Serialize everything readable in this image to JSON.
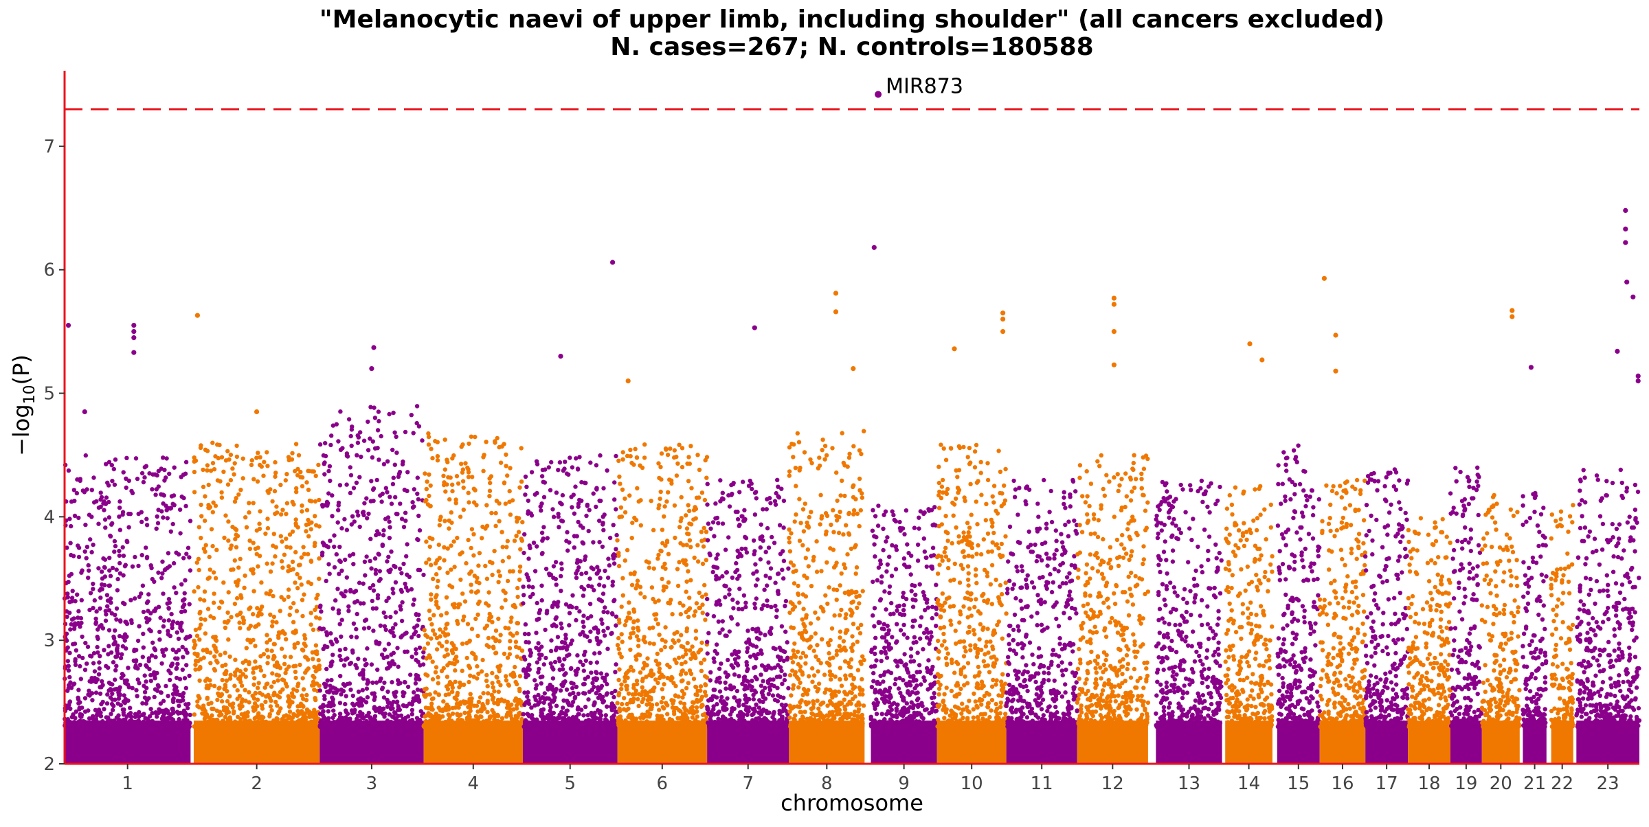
{
  "chart_data": {
    "type": "scatter",
    "title_line1": "\"Melanocytic naevi of upper limb, including shoulder\" (all cancers excluded)",
    "title_line2": "N. cases=267; N. controls=180588",
    "xlabel": "chromosome",
    "ylabel": "−log10(P)",
    "ylim": [
      2,
      7.6
    ],
    "yticks": [
      2,
      3,
      4,
      5,
      6,
      7
    ],
    "significance_line": 7.3,
    "colors": {
      "odd": "#8b008b",
      "even": "#f07800",
      "threshold": "#e8141c",
      "axis": "#e8141c"
    },
    "chromosomes": [
      {
        "label": "1",
        "start": 0.0,
        "end": 0.08,
        "max_y": 4.5
      },
      {
        "label": "2",
        "start": 0.082,
        "end": 0.162,
        "max_y": 4.6
      },
      {
        "label": "3",
        "start": 0.162,
        "end": 0.228,
        "max_y": 4.9
      },
      {
        "label": "4",
        "start": 0.228,
        "end": 0.291,
        "max_y": 4.7
      },
      {
        "label": "5",
        "start": 0.291,
        "end": 0.351,
        "max_y": 4.5
      },
      {
        "label": "6",
        "start": 0.351,
        "end": 0.408,
        "max_y": 4.6
      },
      {
        "label": "7",
        "start": 0.408,
        "end": 0.46,
        "max_y": 4.3
      },
      {
        "label": "8",
        "start": 0.46,
        "end": 0.508,
        "max_y": 4.7
      },
      {
        "label": "9",
        "start": 0.512,
        "end": 0.554,
        "max_y": 4.1
      },
      {
        "label": "10",
        "start": 0.554,
        "end": 0.598,
        "max_y": 4.6
      },
      {
        "label": "11",
        "start": 0.598,
        "end": 0.643,
        "max_y": 4.3
      },
      {
        "label": "12",
        "start": 0.643,
        "end": 0.688,
        "max_y": 4.5
      },
      {
        "label": "13",
        "start": 0.693,
        "end": 0.735,
        "max_y": 4.3
      },
      {
        "label": "14",
        "start": 0.737,
        "end": 0.767,
        "max_y": 4.3
      },
      {
        "label": "15",
        "start": 0.77,
        "end": 0.797,
        "max_y": 4.6
      },
      {
        "label": "16",
        "start": 0.797,
        "end": 0.826,
        "max_y": 4.3
      },
      {
        "label": "17",
        "start": 0.826,
        "end": 0.853,
        "max_y": 4.4
      },
      {
        "label": "18",
        "start": 0.853,
        "end": 0.88,
        "max_y": 4.0
      },
      {
        "label": "19",
        "start": 0.88,
        "end": 0.9,
        "max_y": 4.4
      },
      {
        "label": "20",
        "start": 0.9,
        "end": 0.924,
        "max_y": 4.2
      },
      {
        "label": "21",
        "start": 0.926,
        "end": 0.941,
        "max_y": 4.2
      },
      {
        "label": "22",
        "start": 0.944,
        "end": 0.958,
        "max_y": 4.1
      },
      {
        "label": "23",
        "start": 0.96,
        "end": 1.0,
        "max_y": 4.4
      }
    ],
    "highlight_points": [
      {
        "chr": "1",
        "pos": 0.03,
        "y": 5.55
      },
      {
        "chr": "1",
        "pos": 0.55,
        "y": 5.55
      },
      {
        "chr": "1",
        "pos": 0.55,
        "y": 5.5
      },
      {
        "chr": "1",
        "pos": 0.55,
        "y": 5.45
      },
      {
        "chr": "1",
        "pos": 0.55,
        "y": 5.33
      },
      {
        "chr": "1",
        "pos": 0.16,
        "y": 4.85
      },
      {
        "chr": "2",
        "pos": 0.03,
        "y": 5.63
      },
      {
        "chr": "2",
        "pos": 0.5,
        "y": 4.85
      },
      {
        "chr": "3",
        "pos": 0.52,
        "y": 5.37
      },
      {
        "chr": "3",
        "pos": 0.5,
        "y": 5.2
      },
      {
        "chr": "5",
        "pos": 0.4,
        "y": 5.3
      },
      {
        "chr": "6",
        "pos": 0.12,
        "y": 5.1
      },
      {
        "chr": "5",
        "pos": 0.95,
        "y": 6.06
      },
      {
        "chr": "7",
        "pos": 0.58,
        "y": 5.53
      },
      {
        "chr": "8",
        "pos": 0.62,
        "y": 5.81
      },
      {
        "chr": "8",
        "pos": 0.62,
        "y": 5.66
      },
      {
        "chr": "8",
        "pos": 0.85,
        "y": 5.2
      },
      {
        "chr": "9",
        "pos": 0.05,
        "y": 6.18
      },
      {
        "chr": "10",
        "pos": 0.25,
        "y": 5.36
      },
      {
        "chr": "10",
        "pos": 0.95,
        "y": 5.65
      },
      {
        "chr": "10",
        "pos": 0.95,
        "y": 5.6
      },
      {
        "chr": "10",
        "pos": 0.95,
        "y": 5.5
      },
      {
        "chr": "12",
        "pos": 0.52,
        "y": 5.77
      },
      {
        "chr": "12",
        "pos": 0.52,
        "y": 5.72
      },
      {
        "chr": "12",
        "pos": 0.52,
        "y": 5.5
      },
      {
        "chr": "12",
        "pos": 0.52,
        "y": 5.23
      },
      {
        "chr": "14",
        "pos": 0.52,
        "y": 5.4
      },
      {
        "chr": "14",
        "pos": 0.78,
        "y": 5.27
      },
      {
        "chr": "16",
        "pos": 0.1,
        "y": 5.93
      },
      {
        "chr": "16",
        "pos": 0.35,
        "y": 5.47
      },
      {
        "chr": "16",
        "pos": 0.35,
        "y": 5.18
      },
      {
        "chr": "20",
        "pos": 0.8,
        "y": 5.67
      },
      {
        "chr": "20",
        "pos": 0.8,
        "y": 5.62
      },
      {
        "chr": "21",
        "pos": 0.35,
        "y": 5.21
      },
      {
        "chr": "23",
        "pos": 0.78,
        "y": 6.48
      },
      {
        "chr": "23",
        "pos": 0.78,
        "y": 6.33
      },
      {
        "chr": "23",
        "pos": 0.78,
        "y": 6.22
      },
      {
        "chr": "23",
        "pos": 0.8,
        "y": 5.9
      },
      {
        "chr": "23",
        "pos": 0.9,
        "y": 5.78
      },
      {
        "chr": "23",
        "pos": 0.65,
        "y": 5.34
      },
      {
        "chr": "23",
        "pos": 0.98,
        "y": 5.14
      },
      {
        "chr": "23",
        "pos": 0.98,
        "y": 5.1
      }
    ],
    "top_hit": {
      "label": "MIR873",
      "chr": "8",
      "pos": 1.18,
      "y": 7.42
    }
  }
}
